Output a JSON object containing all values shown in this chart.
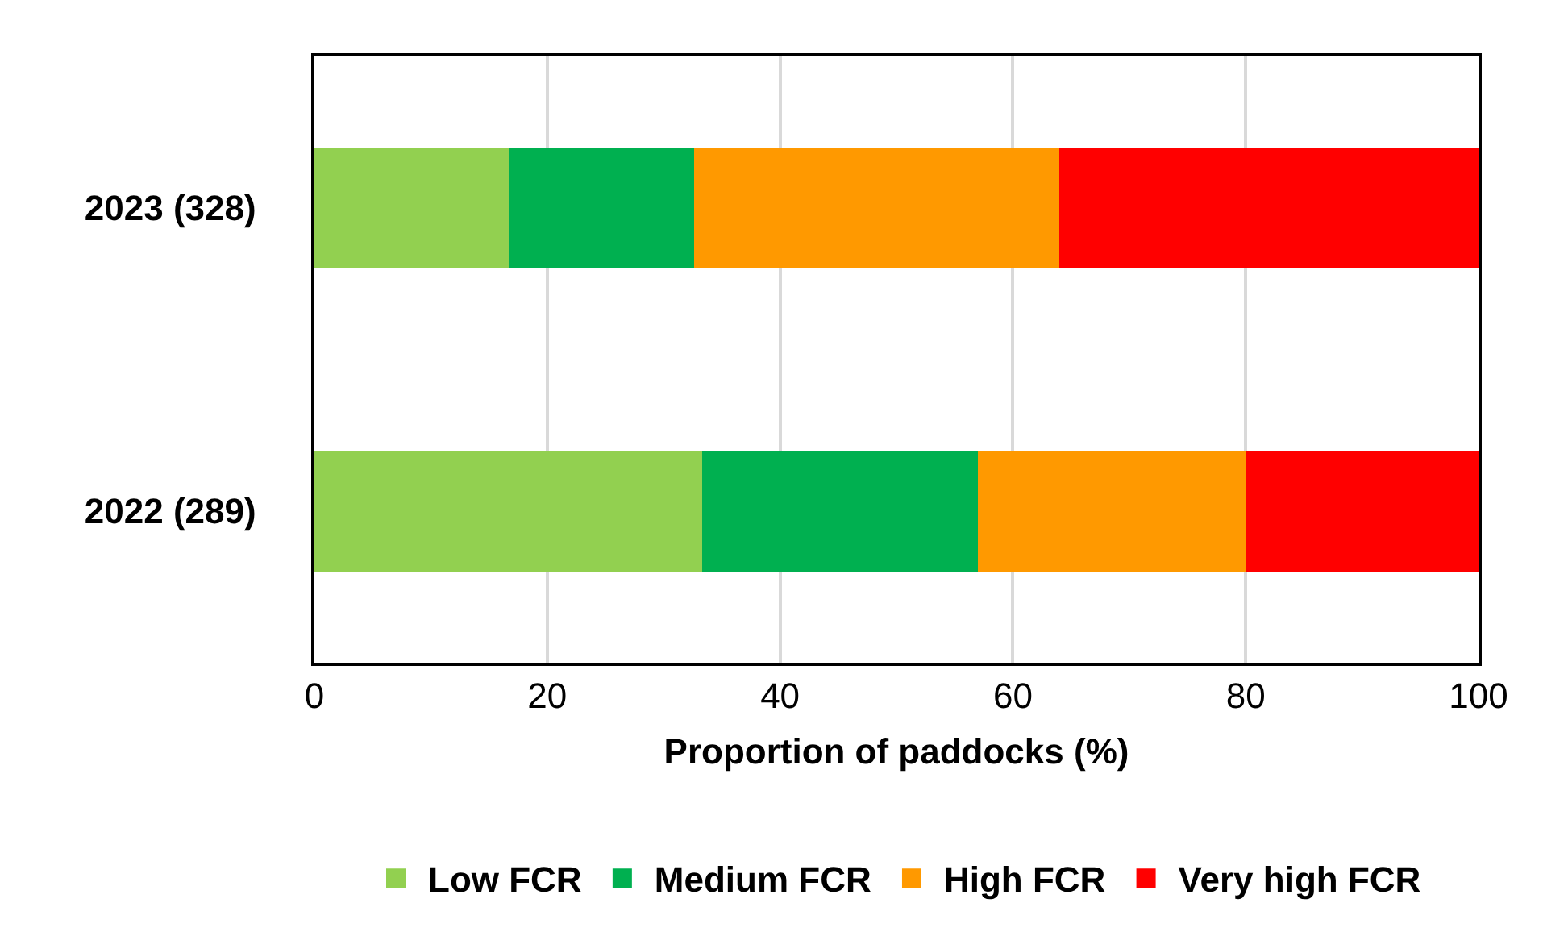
{
  "chart_data": {
    "type": "bar",
    "orientation": "horizontal",
    "stacked": true,
    "categories": [
      "2023 (328)",
      "2022 (289)"
    ],
    "series": [
      {
        "name": "Low FCR",
        "color": "#92d050",
        "values": [
          16.7,
          33.3
        ]
      },
      {
        "name": "Medium FCR",
        "color": "#00b050",
        "values": [
          15.9,
          23.7
        ]
      },
      {
        "name": "High FCR",
        "color": "#ff9900",
        "values": [
          31.4,
          23.0
        ]
      },
      {
        "name": "Very high FCR",
        "color": "#ff0000",
        "values": [
          36.0,
          20.0
        ]
      }
    ],
    "xlabel": "Proportion of paddocks (%)",
    "xlim": [
      0,
      100
    ],
    "xticks": [
      0,
      20,
      40,
      60,
      80,
      100
    ],
    "grid": "x",
    "legend": "bottom"
  }
}
